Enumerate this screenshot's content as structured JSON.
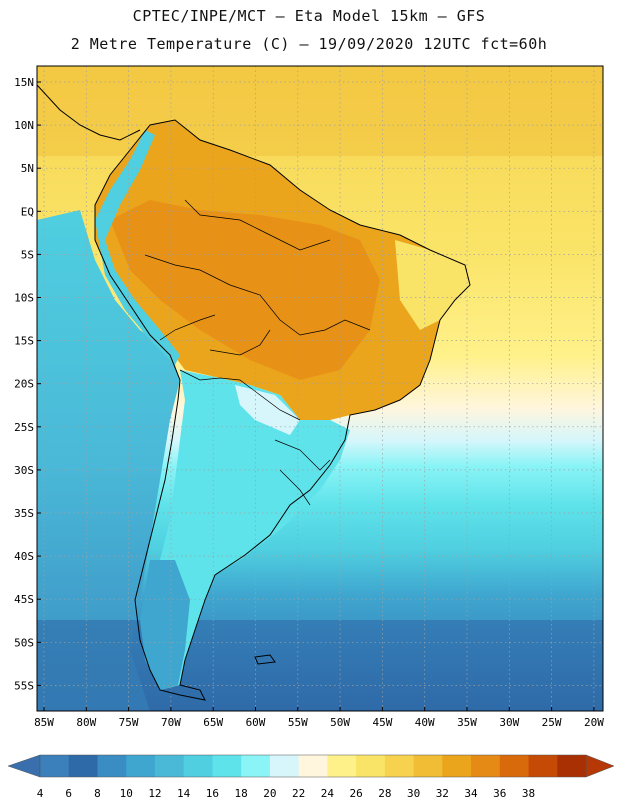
{
  "header": {
    "line1": "CPTEC/INPE/MCT –  Eta Model 15km – GFS",
    "line2": "2 Metre Temperature (C) – 19/09/2020 12UTC fct=60h"
  },
  "axes": {
    "lat_labels": [
      "15N",
      "10N",
      "5N",
      "EQ",
      "5S",
      "10S",
      "15S",
      "20S",
      "25S",
      "30S",
      "35S",
      "40S",
      "45S",
      "50S",
      "55S"
    ],
    "lon_labels": [
      "85W",
      "80W",
      "75W",
      "70W",
      "65W",
      "60W",
      "55W",
      "50W",
      "45W",
      "40W",
      "35W",
      "30W",
      "25W",
      "20W"
    ]
  },
  "colorbar": {
    "levels": [
      "4",
      "6",
      "8",
      "10",
      "12",
      "14",
      "16",
      "18",
      "20",
      "22",
      "24",
      "26",
      "28",
      "30",
      "32",
      "34",
      "36",
      "38"
    ],
    "colors": [
      "#3b80bb",
      "#2f6aa8",
      "#3a8dc2",
      "#3fa6cf",
      "#4ab9d8",
      "#4fcfe0",
      "#5fe3ea",
      "#8af4f6",
      "#d6f6fb",
      "#fff6dd",
      "#fff18a",
      "#fae467",
      "#f6d24f",
      "#f0bd35",
      "#eba51c",
      "#e58a14",
      "#d96a0c",
      "#c44a05",
      "#a83002"
    ],
    "low_color": "#3a6fad",
    "high_color": "#b53806"
  }
}
